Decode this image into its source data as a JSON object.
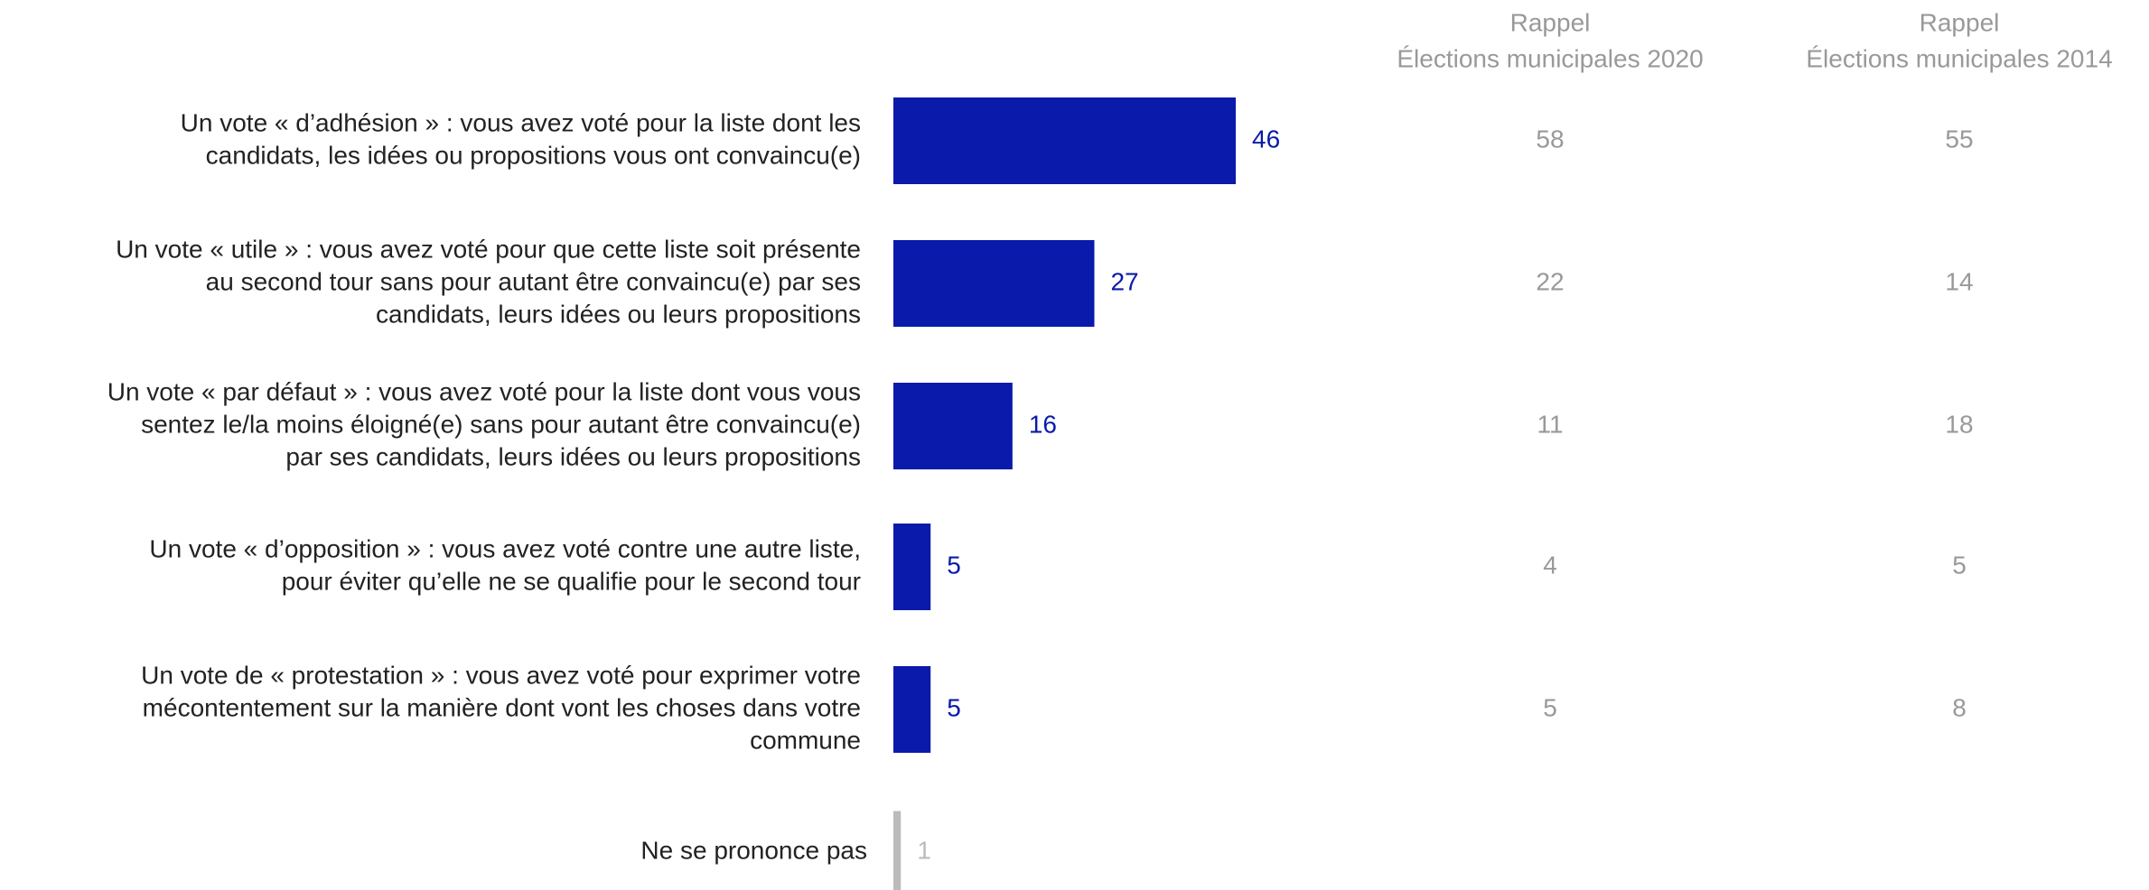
{
  "chart_data": {
    "type": "bar",
    "orientation": "horizontal",
    "categories": [
      [
        "Un vote « d’adhésion » : vous avez voté pour la liste dont les",
        "candidats, les idées ou propositions vous ont convaincu(e)"
      ],
      [
        "Un vote « utile » : vous avez voté pour que cette liste soit présente",
        "au second tour sans pour autant être convaincu(e) par ses",
        "candidats, leurs idées ou leurs propositions"
      ],
      [
        "Un vote « par défaut » : vous avez voté pour la liste dont vous vous",
        "sentez le/la moins éloigné(e) sans pour autant être convaincu(e)",
        "par ses candidats, leurs idées ou leurs propositions"
      ],
      [
        "Un vote « d’opposition » : vous avez voté contre une autre liste,",
        "pour éviter qu’elle ne se qualifie pour le second tour"
      ],
      [
        "Un vote de « protestation » : vous avez voté pour exprimer votre",
        "mécontentement sur la manière dont vont les choses dans votre",
        "commune"
      ],
      [
        "Ne se prononce pas"
      ]
    ],
    "values": [
      46,
      27,
      16,
      5,
      5,
      1
    ],
    "colors": [
      "#0a1aaa",
      "#0a1aaa",
      "#0a1aaa",
      "#0a1aaa",
      "#0a1aaa",
      "#bbbbbb"
    ],
    "xlim": [
      0,
      100
    ],
    "columns": [
      {
        "header": [
          "Rappel",
          "Élections municipales 2020"
        ],
        "values": [
          58,
          22,
          11,
          4,
          5
        ]
      },
      {
        "header": [
          "Rappel",
          "Élections municipales 2014"
        ],
        "values": [
          55,
          14,
          18,
          5,
          8
        ]
      }
    ]
  }
}
